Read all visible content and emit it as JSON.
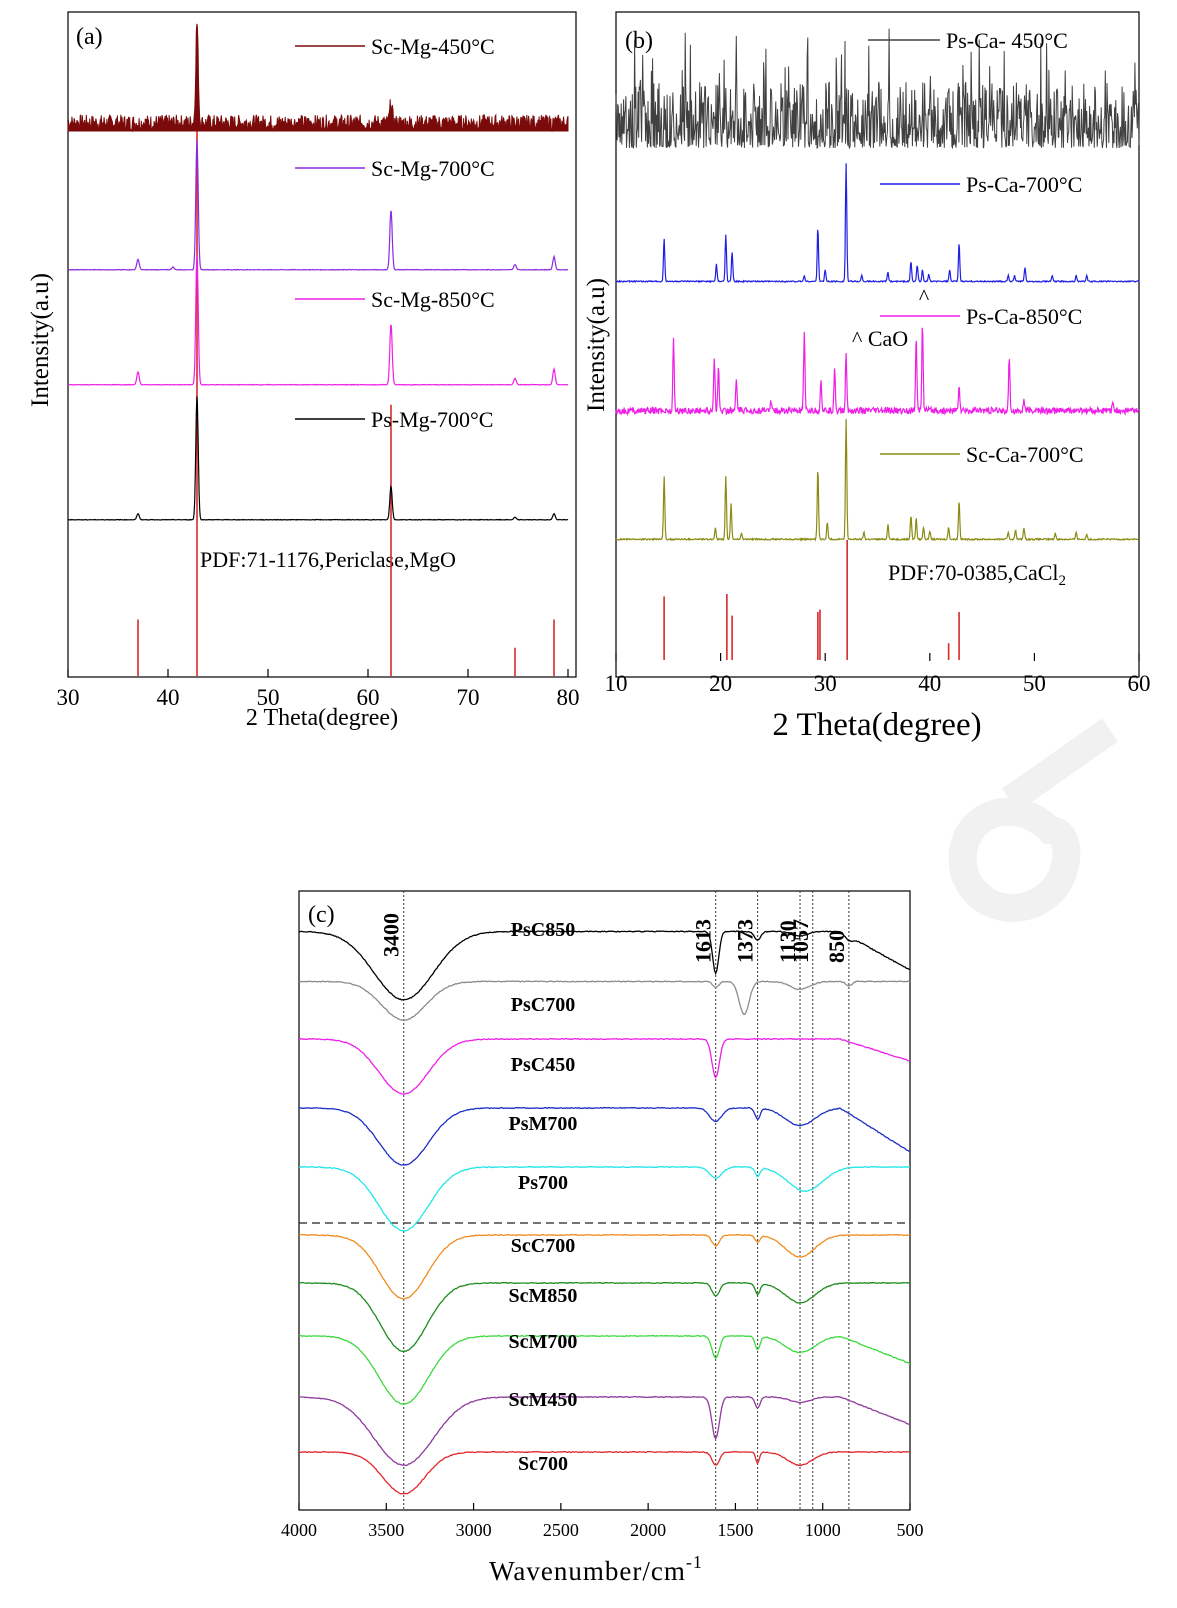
{
  "chart_data": [
    {
      "panel": "(a)",
      "type": "line",
      "xlabel": "2 Theta(degree)",
      "ylabel": "Intensity(a.u)",
      "xlim": [
        30,
        80
      ],
      "xticks": [
        30,
        40,
        50,
        60,
        70,
        80
      ],
      "reference_label": "PDF:71-1176,Periclase,MgO",
      "reference_color": "#d8282c",
      "reference_lines": [
        [
          37.0,
          0.1
        ],
        [
          42.9,
          1.0
        ],
        [
          62.3,
          0.48
        ],
        [
          74.7,
          0.05
        ],
        [
          78.6,
          0.1
        ]
      ],
      "series": [
        {
          "name": "Sc-Mg-450°C",
          "color": "#7b0a0a",
          "fill": true,
          "peaks": [
            [
              42.9,
              1.0
            ],
            [
              62.3,
              0.19
            ]
          ],
          "noise": 0.16
        },
        {
          "name": "Sc-Mg-700°C",
          "color": "#8b2be2",
          "peaks": [
            [
              37.0,
              0.08
            ],
            [
              40.5,
              0.02
            ],
            [
              42.9,
              1.0
            ],
            [
              62.3,
              0.46
            ],
            [
              74.7,
              0.04
            ],
            [
              78.6,
              0.1
            ]
          ],
          "noise": 0.004
        },
        {
          "name": "Sc-Mg-850°C",
          "color": "#ee1fe6",
          "peaks": [
            [
              37.0,
              0.1
            ],
            [
              42.9,
              1.0
            ],
            [
              62.3,
              0.47
            ],
            [
              74.7,
              0.05
            ],
            [
              78.6,
              0.12
            ]
          ],
          "noise": 0.004
        },
        {
          "name": "Ps-Mg-700°C",
          "color": "#000000",
          "peaks": [
            [
              37.0,
              0.05
            ],
            [
              42.9,
              1.0
            ],
            [
              62.3,
              0.27
            ],
            [
              74.7,
              0.02
            ],
            [
              78.6,
              0.05
            ]
          ],
          "noise": 0.004
        }
      ]
    },
    {
      "panel": "(b)",
      "type": "line",
      "xlabel": "2 Theta(degree)",
      "ylabel": "Intensity(a.u)",
      "xlim": [
        10,
        60
      ],
      "xticks": [
        10,
        20,
        30,
        40,
        50,
        60
      ],
      "reference_label": "PDF:70-0385,CaCl",
      "reference_label_sub": "2",
      "reference_color": "#d8282c",
      "reference_lines": [
        [
          14.6,
          0.53
        ],
        [
          20.6,
          0.55
        ],
        [
          21.1,
          0.37
        ],
        [
          29.3,
          0.4
        ],
        [
          29.5,
          0.42
        ],
        [
          32.1,
          1.0
        ],
        [
          41.8,
          0.14
        ],
        [
          42.8,
          0.4
        ]
      ],
      "annotation": "^ CaO",
      "annotation_marker": "^",
      "series": [
        {
          "name": "Ps-Ca- 450°C",
          "color": "#404040",
          "noise": 1.0,
          "peaks": []
        },
        {
          "name": "Ps-Ca-700°C",
          "color": "#1f1fe6",
          "peaks": [
            [
              14.6,
              0.37
            ],
            [
              19.6,
              0.15
            ],
            [
              20.5,
              0.4
            ],
            [
              21.1,
              0.25
            ],
            [
              28.0,
              0.05
            ],
            [
              29.3,
              0.46
            ],
            [
              30.0,
              0.1
            ],
            [
              32.0,
              1.0
            ],
            [
              33.5,
              0.05
            ],
            [
              36.0,
              0.08
            ],
            [
              38.2,
              0.17
            ],
            [
              38.8,
              0.14
            ],
            [
              39.3,
              0.1
            ],
            [
              39.9,
              0.06
            ],
            [
              41.9,
              0.1
            ],
            [
              42.8,
              0.33
            ],
            [
              47.5,
              0.05
            ],
            [
              48.1,
              0.05
            ],
            [
              49.1,
              0.12
            ],
            [
              51.7,
              0.05
            ],
            [
              54.0,
              0.05
            ],
            [
              55.0,
              0.05
            ]
          ],
          "noise": 0.01
        },
        {
          "name": "Ps-Ca-850°C",
          "color": "#ee1fe6",
          "peaks": [
            [
              15.5,
              0.64
            ],
            [
              19.4,
              0.5
            ],
            [
              19.8,
              0.4
            ],
            [
              21.5,
              0.28
            ],
            [
              24.8,
              0.1
            ],
            [
              28.0,
              0.69
            ],
            [
              29.6,
              0.3
            ],
            [
              30.9,
              0.4
            ],
            [
              32.0,
              0.52
            ],
            [
              38.7,
              0.67
            ],
            [
              39.3,
              0.82
            ],
            [
              42.8,
              0.25
            ],
            [
              47.6,
              0.5
            ],
            [
              49.0,
              0.1
            ],
            [
              57.5,
              0.06
            ]
          ],
          "noise": 0.06
        },
        {
          "name": "Sc-Ca-700°C",
          "color": "#8b8b14",
          "peaks": [
            [
              14.6,
              0.53
            ],
            [
              19.5,
              0.1
            ],
            [
              20.5,
              0.52
            ],
            [
              21.0,
              0.3
            ],
            [
              22.0,
              0.05
            ],
            [
              29.3,
              0.6
            ],
            [
              30.2,
              0.14
            ],
            [
              32.0,
              1.0
            ],
            [
              33.7,
              0.06
            ],
            [
              36.0,
              0.13
            ],
            [
              38.2,
              0.2
            ],
            [
              38.7,
              0.18
            ],
            [
              39.4,
              0.1
            ],
            [
              40.0,
              0.07
            ],
            [
              41.8,
              0.1
            ],
            [
              42.8,
              0.33
            ],
            [
              47.5,
              0.06
            ],
            [
              48.2,
              0.08
            ],
            [
              49.0,
              0.1
            ],
            [
              52.0,
              0.05
            ],
            [
              54.0,
              0.06
            ],
            [
              55.0,
              0.04
            ]
          ],
          "noise": 0.012
        }
      ]
    },
    {
      "panel": "(c)",
      "type": "line",
      "xlabel": "Wavenumber/cm",
      "xlabel_sup": "-1",
      "xlim": [
        4000,
        500
      ],
      "xticks": [
        4000,
        3500,
        3000,
        2500,
        2000,
        1500,
        1000,
        500
      ],
      "markers": [
        3400,
        1613,
        1373,
        1130,
        1057,
        850
      ],
      "series": [
        {
          "name": "PsC850",
          "color": "#000000",
          "baseline": 0.05,
          "bands": [
            [
              3400,
              0.62,
              240
            ],
            [
              1613,
              0.38,
              25
            ],
            [
              1373,
              0.08,
              25
            ],
            [
              1130,
              0.04,
              60
            ],
            [
              850,
              0.04,
              30
            ]
          ],
          "tail": 0.35
        },
        {
          "name": "PsC700",
          "color": "#8c8c8c",
          "baseline": 0.05,
          "bands": [
            [
              3400,
              0.35,
              180
            ],
            [
              1613,
              0.05,
              25
            ],
            [
              1450,
              0.3,
              40
            ],
            [
              1130,
              0.07,
              80
            ],
            [
              850,
              0.04,
              25
            ]
          ],
          "tail": 0.0
        },
        {
          "name": "PsC450",
          "color": "#ee1fe6",
          "baseline": 0.0,
          "bands": [
            [
              3400,
              0.5,
              200
            ],
            [
              1613,
              0.35,
              30
            ]
          ],
          "tail": 0.2
        },
        {
          "name": "PsM700",
          "color": "#1c2fc6",
          "baseline": 0.0,
          "bands": [
            [
              3400,
              0.52,
              200
            ],
            [
              1613,
              0.12,
              50
            ],
            [
              1373,
              0.1,
              20
            ],
            [
              1130,
              0.16,
              120
            ]
          ],
          "tail": 0.4
        },
        {
          "name": "Ps700",
          "color": "#22e6e6",
          "baseline": 0.0,
          "bands": [
            [
              3400,
              0.58,
              200
            ],
            [
              1613,
              0.1,
              50
            ],
            [
              1373,
              0.08,
              20
            ],
            [
              1100,
              0.22,
              140
            ]
          ],
          "tail": 0.0
        },
        {
          "name": "ScC700",
          "color": "#f08c1e",
          "baseline": 0.0,
          "bands": [
            [
              3400,
              0.58,
              190
            ],
            [
              1613,
              0.1,
              30
            ],
            [
              1373,
              0.06,
              20
            ],
            [
              1130,
              0.2,
              120
            ]
          ],
          "tail": 0.0
        },
        {
          "name": "ScM850",
          "color": "#1e8c1e",
          "baseline": 0.0,
          "bands": [
            [
              3400,
              0.62,
              190
            ],
            [
              1613,
              0.12,
              30
            ],
            [
              1373,
              0.1,
              20
            ],
            [
              1130,
              0.18,
              120
            ]
          ],
          "tail": 0.0
        },
        {
          "name": "ScM700",
          "color": "#3ed93e",
          "baseline": 0.0,
          "bands": [
            [
              3400,
              0.62,
              200
            ],
            [
              1613,
              0.2,
              30
            ],
            [
              1373,
              0.12,
              20
            ],
            [
              1130,
              0.15,
              120
            ]
          ],
          "tail": 0.25
        },
        {
          "name": "ScM450",
          "color": "#8e3c9c",
          "baseline": 0.0,
          "bands": [
            [
              3400,
              0.62,
              240
            ],
            [
              1613,
              0.38,
              30
            ],
            [
              1373,
              0.1,
              20
            ],
            [
              1130,
              0.05,
              80
            ]
          ],
          "tail": 0.25
        },
        {
          "name": "Sc700",
          "color": "#e0282c",
          "baseline": 0.0,
          "bands": [
            [
              3400,
              0.38,
              170
            ],
            [
              1613,
              0.12,
              30
            ],
            [
              1373,
              0.1,
              15
            ],
            [
              1130,
              0.12,
              100
            ]
          ],
          "tail": 0.0
        }
      ]
    }
  ]
}
